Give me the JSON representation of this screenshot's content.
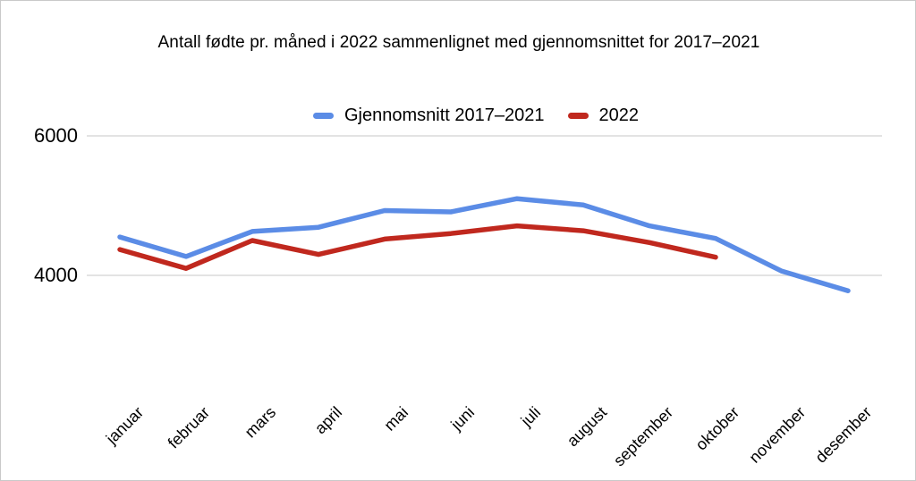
{
  "chart_data": {
    "type": "line",
    "title": "Antall fødte pr. måned i 2022 sammenlignet med gjennomsnittet for 2017–2021",
    "categories": [
      "januar",
      "februar",
      "mars",
      "april",
      "mai",
      "juni",
      "juli",
      "august",
      "september",
      "oktober",
      "november",
      "desember"
    ],
    "series": [
      {
        "name": "Gjennomsnitt 2017–2021",
        "color": "#5b8ce6",
        "values": [
          4550,
          4270,
          4630,
          4690,
          4930,
          4910,
          5100,
          5010,
          4710,
          4530,
          4060,
          3780
        ]
      },
      {
        "name": "2022",
        "color": "#c0281e",
        "values": [
          4370,
          4100,
          4500,
          4300,
          4520,
          4600,
          4710,
          4640,
          4470,
          4260,
          null,
          null
        ]
      }
    ],
    "yticks": [
      {
        "value": 6000,
        "label": "6000"
      },
      {
        "value": 4000,
        "label": "4000"
      }
    ],
    "ylim": [
      3700,
      6200
    ],
    "grid": "horizontal-only",
    "legend_position": "top",
    "colors": {
      "gridline": "#e3e3e3",
      "border": "#c9c9c9",
      "text": "#000000"
    }
  }
}
